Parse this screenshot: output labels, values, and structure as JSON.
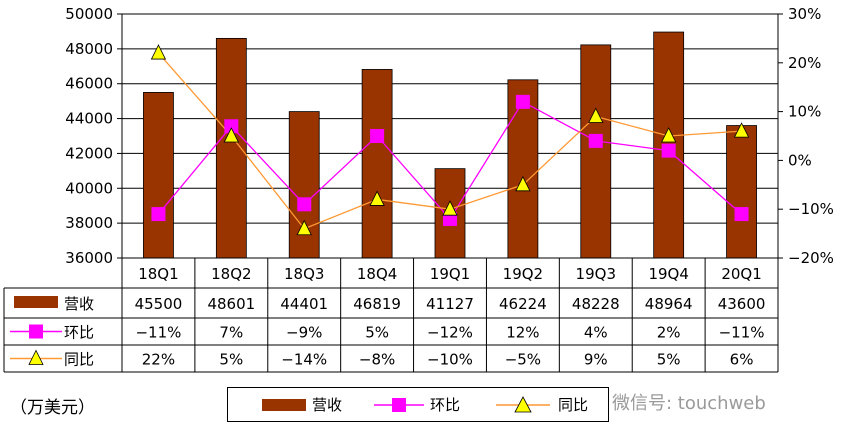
{
  "chart_data": {
    "type": "bar",
    "categories": [
      "18Q1",
      "18Q2",
      "18Q3",
      "18Q4",
      "19Q1",
      "19Q2",
      "19Q3",
      "19Q4",
      "20Q1"
    ],
    "series": [
      {
        "name": "营收",
        "type": "bar",
        "axis": "left",
        "color": "#993300",
        "values": [
          45500,
          48601,
          44401,
          46819,
          41127,
          46224,
          48228,
          48964,
          43600
        ],
        "table_labels": [
          "45500",
          "48601",
          "44401",
          "46819",
          "41127",
          "46224",
          "48228",
          "48964",
          "43600"
        ]
      },
      {
        "name": "环比",
        "type": "line",
        "axis": "right",
        "color": "#ff00ff",
        "marker": "square",
        "values": [
          -11,
          7,
          -9,
          5,
          -12,
          12,
          4,
          2,
          -11
        ],
        "table_labels": [
          "−11%",
          "7%",
          "−9%",
          "5%",
          "−12%",
          "12%",
          "4%",
          "2%",
          "−11%"
        ]
      },
      {
        "name": "同比",
        "type": "line",
        "axis": "right",
        "color": "#ff9933",
        "marker": "triangle",
        "marker_color": "#ffff00",
        "values": [
          22,
          5,
          -14,
          -8,
          -10,
          -5,
          9,
          5,
          6
        ],
        "table_labels": [
          "22%",
          "5%",
          "−14%",
          "−8%",
          "−10%",
          "−5%",
          "9%",
          "5%",
          "6%"
        ]
      }
    ],
    "y_left": {
      "min": 36000,
      "max": 50000,
      "step": 2000,
      "ticks": [
        "36000",
        "38000",
        "40000",
        "42000",
        "44000",
        "46000",
        "48000",
        "50000"
      ]
    },
    "y_right": {
      "min": -20,
      "max": 30,
      "step": 10,
      "ticks": [
        "−20%",
        "−10%",
        "0%",
        "10%",
        "20%",
        "30%"
      ]
    },
    "grid": true,
    "data_table": true,
    "legend_position": "bottom"
  },
  "unit_label": "（万美元）",
  "watermark": "微信号: touchweb"
}
